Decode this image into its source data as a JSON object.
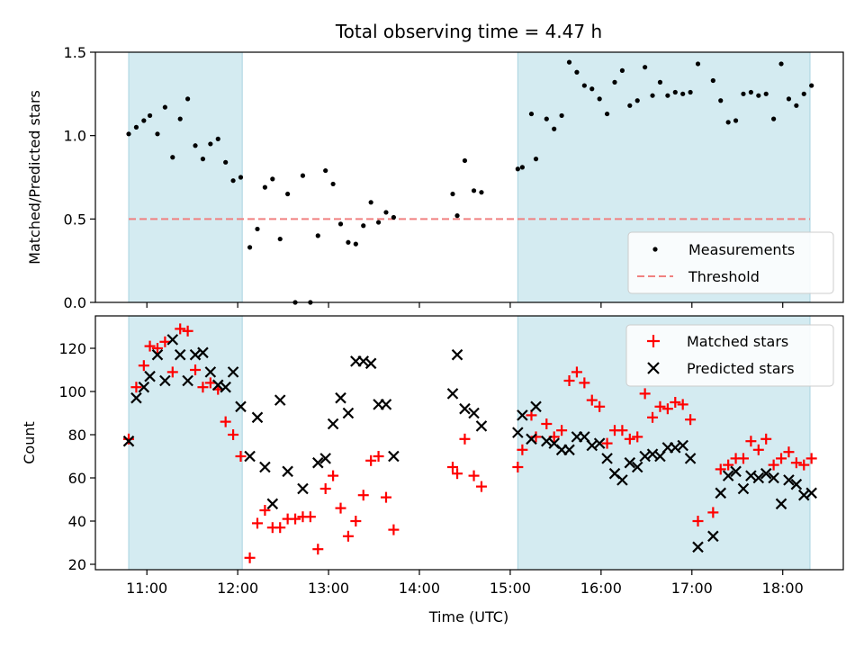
{
  "chart_data": [
    {
      "type": "scatter",
      "title": "Total observing time = 4.47 h",
      "ylabel": "Matched/Predicted stars",
      "xlabel": "",
      "ylim": [
        0,
        1.5
      ],
      "yticks": [
        0,
        0.5,
        1.0,
        1.5
      ],
      "ytick_labels": [
        "0.0",
        "0.5",
        "1.0",
        "1.5"
      ],
      "legend_placement": "lower-right",
      "shaded_intervals": [
        [
          "10:48",
          "12:03"
        ],
        [
          "15:05",
          "18:18"
        ]
      ],
      "threshold": {
        "name": "Threshold",
        "value": 0.5,
        "color": "#f08080",
        "x_range": [
          "10:48",
          "18:18"
        ]
      },
      "series": [
        {
          "name": "Measurements",
          "color": "#000000",
          "marker": "dot",
          "points": [
            [
              "10:48",
              1.01
            ],
            [
              "10:53",
              1.05
            ],
            [
              "10:58",
              1.09
            ],
            [
              "11:02",
              1.12
            ],
            [
              "11:07",
              1.01
            ],
            [
              "11:12",
              1.17
            ],
            [
              "11:17",
              0.87
            ],
            [
              "11:22",
              1.1
            ],
            [
              "11:27",
              1.22
            ],
            [
              "11:32",
              0.94
            ],
            [
              "11:37",
              0.86
            ],
            [
              "11:42",
              0.95
            ],
            [
              "11:47",
              0.98
            ],
            [
              "11:52",
              0.84
            ],
            [
              "11:57",
              0.73
            ],
            [
              "12:02",
              0.75
            ],
            [
              "12:08",
              0.33
            ],
            [
              "12:13",
              0.44
            ],
            [
              "12:18",
              0.69
            ],
            [
              "12:23",
              0.74
            ],
            [
              "12:28",
              0.38
            ],
            [
              "12:33",
              0.65
            ],
            [
              "12:38",
              0.0
            ],
            [
              "12:43",
              0.76
            ],
            [
              "12:48",
              0.0
            ],
            [
              "12:53",
              0.4
            ],
            [
              "12:58",
              0.79
            ],
            [
              "13:03",
              0.71
            ],
            [
              "13:08",
              0.47
            ],
            [
              "13:13",
              0.36
            ],
            [
              "13:18",
              0.35
            ],
            [
              "13:23",
              0.46
            ],
            [
              "13:28",
              0.6
            ],
            [
              "13:33",
              0.48
            ],
            [
              "13:38",
              0.54
            ],
            [
              "13:43",
              0.51
            ],
            [
              "14:22",
              0.65
            ],
            [
              "14:25",
              0.52
            ],
            [
              "14:30",
              0.85
            ],
            [
              "14:36",
              0.67
            ],
            [
              "14:41",
              0.66
            ],
            [
              "15:05",
              0.8
            ],
            [
              "15:08",
              0.81
            ],
            [
              "15:14",
              1.13
            ],
            [
              "15:17",
              0.86
            ],
            [
              "15:24",
              1.1
            ],
            [
              "15:29",
              1.04
            ],
            [
              "15:34",
              1.12
            ],
            [
              "15:39",
              1.44
            ],
            [
              "15:44",
              1.38
            ],
            [
              "15:49",
              1.3
            ],
            [
              "15:54",
              1.28
            ],
            [
              "15:59",
              1.22
            ],
            [
              "16:04",
              1.13
            ],
            [
              "16:09",
              1.32
            ],
            [
              "16:14",
              1.39
            ],
            [
              "16:19",
              1.18
            ],
            [
              "16:24",
              1.21
            ],
            [
              "16:29",
              1.41
            ],
            [
              "16:34",
              1.24
            ],
            [
              "16:39",
              1.32
            ],
            [
              "16:44",
              1.24
            ],
            [
              "16:49",
              1.26
            ],
            [
              "16:54",
              1.25
            ],
            [
              "16:59",
              1.26
            ],
            [
              "17:04",
              1.43
            ],
            [
              "17:14",
              1.33
            ],
            [
              "17:19",
              1.21
            ],
            [
              "17:24",
              1.08
            ],
            [
              "17:29",
              1.09
            ],
            [
              "17:34",
              1.25
            ],
            [
              "17:39",
              1.26
            ],
            [
              "17:44",
              1.24
            ],
            [
              "17:49",
              1.25
            ],
            [
              "17:54",
              1.1
            ],
            [
              "17:59",
              1.43
            ],
            [
              "18:04",
              1.22
            ],
            [
              "18:09",
              1.18
            ],
            [
              "18:14",
              1.25
            ],
            [
              "18:19",
              1.3
            ]
          ]
        }
      ]
    },
    {
      "type": "scatter",
      "title": "",
      "xlabel": "Time (UTC)",
      "ylabel": "Count",
      "ylim": [
        17.5,
        135
      ],
      "yticks": [
        20,
        40,
        60,
        80,
        100,
        120
      ],
      "xlim": [
        "10:26",
        "18:40"
      ],
      "xticks": [
        "11:00",
        "12:00",
        "13:00",
        "14:00",
        "15:00",
        "16:00",
        "17:00",
        "18:00"
      ],
      "legend_placement": "upper-right",
      "shaded_intervals": [
        [
          "10:48",
          "12:03"
        ],
        [
          "15:05",
          "18:18"
        ]
      ],
      "series": [
        {
          "name": "Matched stars",
          "color": "#ff0000",
          "marker": "plus",
          "points": [
            [
              "10:48",
              78
            ],
            [
              "10:53",
              102
            ],
            [
              "10:58",
              112
            ],
            [
              "11:02",
              121
            ],
            [
              "11:07",
              120
            ],
            [
              "11:12",
              123
            ],
            [
              "11:17",
              109
            ],
            [
              "11:22",
              129
            ],
            [
              "11:27",
              128
            ],
            [
              "11:32",
              110
            ],
            [
              "11:37",
              102
            ],
            [
              "11:42",
              104
            ],
            [
              "11:47",
              101
            ],
            [
              "11:52",
              86
            ],
            [
              "11:57",
              80
            ],
            [
              "12:02",
              70
            ],
            [
              "12:08",
              23
            ],
            [
              "12:13",
              39
            ],
            [
              "12:18",
              45
            ],
            [
              "12:23",
              37
            ],
            [
              "12:28",
              37
            ],
            [
              "12:33",
              41
            ],
            [
              "12:38",
              41
            ],
            [
              "12:43",
              42
            ],
            [
              "12:48",
              42
            ],
            [
              "12:53",
              27
            ],
            [
              "12:58",
              55
            ],
            [
              "13:03",
              61
            ],
            [
              "13:08",
              46
            ],
            [
              "13:13",
              33
            ],
            [
              "13:18",
              40
            ],
            [
              "13:23",
              52
            ],
            [
              "13:28",
              68
            ],
            [
              "13:33",
              70
            ],
            [
              "13:38",
              51
            ],
            [
              "13:43",
              36
            ],
            [
              "14:22",
              65
            ],
            [
              "14:25",
              62
            ],
            [
              "14:30",
              78
            ],
            [
              "14:36",
              61
            ],
            [
              "14:41",
              56
            ],
            [
              "15:05",
              65
            ],
            [
              "15:08",
              73
            ],
            [
              "15:14",
              89
            ],
            [
              "15:17",
              79
            ],
            [
              "15:24",
              85
            ],
            [
              "15:29",
              79
            ],
            [
              "15:34",
              82
            ],
            [
              "15:39",
              105
            ],
            [
              "15:44",
              109
            ],
            [
              "15:49",
              104
            ],
            [
              "15:54",
              96
            ],
            [
              "15:59",
              93
            ],
            [
              "16:04",
              76
            ],
            [
              "16:09",
              82
            ],
            [
              "16:14",
              82
            ],
            [
              "16:19",
              78
            ],
            [
              "16:24",
              79
            ],
            [
              "16:29",
              99
            ],
            [
              "16:34",
              88
            ],
            [
              "16:39",
              93
            ],
            [
              "16:44",
              92
            ],
            [
              "16:49",
              95
            ],
            [
              "16:54",
              94
            ],
            [
              "16:59",
              87
            ],
            [
              "17:04",
              40
            ],
            [
              "17:14",
              44
            ],
            [
              "17:19",
              64
            ],
            [
              "17:24",
              66
            ],
            [
              "17:29",
              69
            ],
            [
              "17:34",
              69
            ],
            [
              "17:39",
              77
            ],
            [
              "17:44",
              73
            ],
            [
              "17:49",
              78
            ],
            [
              "17:54",
              66
            ],
            [
              "17:59",
              69
            ],
            [
              "18:04",
              72
            ],
            [
              "18:09",
              67
            ],
            [
              "18:14",
              66
            ],
            [
              "18:19",
              69
            ]
          ]
        },
        {
          "name": "Predicted stars",
          "color": "#000000",
          "marker": "x",
          "points": [
            [
              "10:48",
              77
            ],
            [
              "10:53",
              97
            ],
            [
              "10:58",
              102
            ],
            [
              "11:02",
              107
            ],
            [
              "11:07",
              117
            ],
            [
              "11:12",
              105
            ],
            [
              "11:17",
              124
            ],
            [
              "11:22",
              117
            ],
            [
              "11:27",
              105
            ],
            [
              "11:32",
              117
            ],
            [
              "11:37",
              118
            ],
            [
              "11:42",
              109
            ],
            [
              "11:47",
              103
            ],
            [
              "11:52",
              102
            ],
            [
              "11:57",
              109
            ],
            [
              "12:02",
              93
            ],
            [
              "12:08",
              70
            ],
            [
              "12:13",
              88
            ],
            [
              "12:18",
              65
            ],
            [
              "12:23",
              48
            ],
            [
              "12:28",
              96
            ],
            [
              "12:33",
              63
            ],
            [
              "12:43",
              55
            ],
            [
              "12:53",
              67
            ],
            [
              "12:58",
              69
            ],
            [
              "13:03",
              85
            ],
            [
              "13:08",
              97
            ],
            [
              "13:13",
              90
            ],
            [
              "13:18",
              114
            ],
            [
              "13:23",
              114
            ],
            [
              "13:28",
              113
            ],
            [
              "13:33",
              94
            ],
            [
              "13:38",
              94
            ],
            [
              "13:43",
              70
            ],
            [
              "14:22",
              99
            ],
            [
              "14:25",
              117
            ],
            [
              "14:30",
              92
            ],
            [
              "14:36",
              90
            ],
            [
              "14:41",
              84
            ],
            [
              "15:05",
              81
            ],
            [
              "15:08",
              89
            ],
            [
              "15:14",
              78
            ],
            [
              "15:17",
              93
            ],
            [
              "15:24",
              77
            ],
            [
              "15:29",
              76
            ],
            [
              "15:34",
              73
            ],
            [
              "15:39",
              73
            ],
            [
              "15:44",
              79
            ],
            [
              "15:49",
              79
            ],
            [
              "15:54",
              75
            ],
            [
              "15:59",
              76
            ],
            [
              "16:04",
              69
            ],
            [
              "16:09",
              62
            ],
            [
              "16:14",
              59
            ],
            [
              "16:19",
              67
            ],
            [
              "16:24",
              65
            ],
            [
              "16:29",
              70
            ],
            [
              "16:34",
              71
            ],
            [
              "16:39",
              70
            ],
            [
              "16:44",
              74
            ],
            [
              "16:49",
              74
            ],
            [
              "16:54",
              75
            ],
            [
              "16:59",
              69
            ],
            [
              "17:04",
              28
            ],
            [
              "17:14",
              33
            ],
            [
              "17:19",
              53
            ],
            [
              "17:24",
              61
            ],
            [
              "17:29",
              63
            ],
            [
              "17:34",
              55
            ],
            [
              "17:39",
              61
            ],
            [
              "17:44",
              60
            ],
            [
              "17:49",
              62
            ],
            [
              "17:54",
              60
            ],
            [
              "17:59",
              48
            ],
            [
              "18:04",
              59
            ],
            [
              "18:09",
              57
            ],
            [
              "18:14",
              52
            ],
            [
              "18:19",
              53
            ]
          ]
        }
      ]
    }
  ],
  "colors": {
    "shade": "#d4ebf1",
    "shade_edge": "#a9d3e0"
  }
}
